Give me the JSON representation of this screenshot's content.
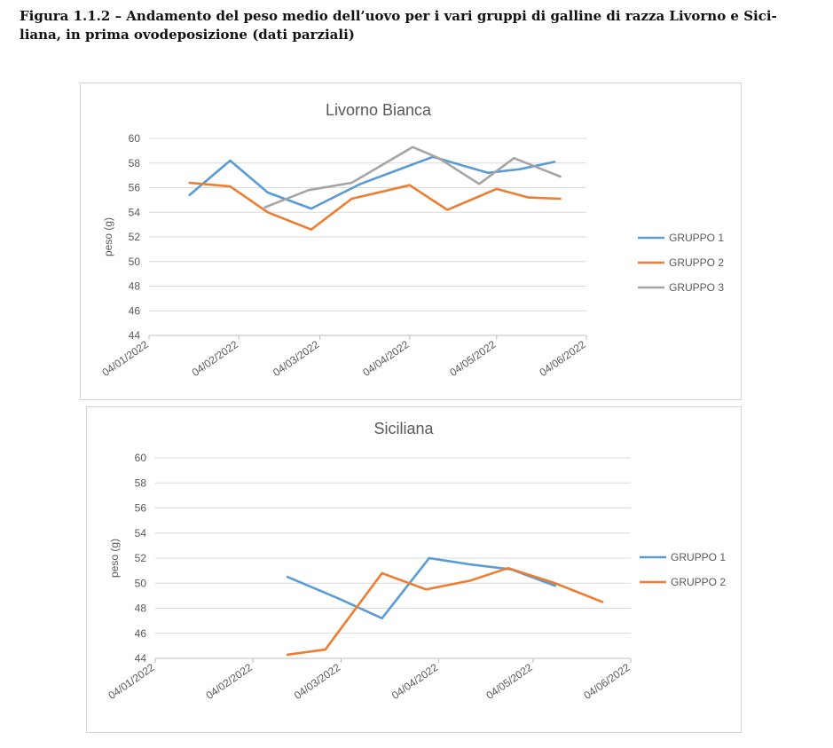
{
  "caption": "Figura 1.1.2 – Andamento del peso medio dell’uovo per i vari gruppi di galline di razza Livorno e Sici-liana, in prima ovodeposizione (dati parziali)",
  "colors": {
    "gruppo1": "#5b9bd5",
    "gruppo2": "#ed7d31",
    "gruppo3": "#a5a5a5",
    "grid": "#d9d9d9",
    "text": "#595959"
  },
  "chart_data": [
    {
      "type": "line",
      "title": "Livorno Bianca",
      "xlabel": "",
      "ylabel": "peso (g)",
      "ylim": [
        44,
        60
      ],
      "yticks": [
        44,
        46,
        48,
        50,
        52,
        54,
        56,
        58,
        60
      ],
      "xticks": [
        "04/01/2022",
        "04/02/2022",
        "04/03/2022",
        "04/04/2022",
        "04/05/2022",
        "04/06/2022"
      ],
      "xlim": [
        "2022-01-04",
        "2022-06-04"
      ],
      "grid": true,
      "legend": "right",
      "series": [
        {
          "name": "GRUPPO 1",
          "color": "#5b9bd5",
          "points": [
            [
              "2022-01-18",
              55.4
            ],
            [
              "2022-02-01",
              58.2
            ],
            [
              "2022-02-14",
              55.6
            ],
            [
              "2022-03-01",
              54.3
            ],
            [
              "2022-03-18",
              56.3
            ],
            [
              "2022-04-04",
              57.8
            ],
            [
              "2022-04-12",
              58.5
            ],
            [
              "2022-05-01",
              57.2
            ],
            [
              "2022-05-12",
              57.5
            ],
            [
              "2022-05-24",
              58.1
            ]
          ]
        },
        {
          "name": "GRUPPO 2",
          "color": "#ed7d31",
          "points": [
            [
              "2022-01-18",
              56.4
            ],
            [
              "2022-02-01",
              56.1
            ],
            [
              "2022-02-14",
              54.0
            ],
            [
              "2022-03-01",
              52.6
            ],
            [
              "2022-03-15",
              55.1
            ],
            [
              "2022-04-04",
              56.2
            ],
            [
              "2022-04-17",
              54.2
            ],
            [
              "2022-05-04",
              55.9
            ],
            [
              "2022-05-15",
              55.2
            ],
            [
              "2022-05-26",
              55.1
            ]
          ]
        },
        {
          "name": "GRUPPO 3",
          "color": "#a5a5a5",
          "points": [
            [
              "2022-02-13",
              54.4
            ],
            [
              "2022-02-28",
              55.8
            ],
            [
              "2022-03-15",
              56.4
            ],
            [
              "2022-04-05",
              59.3
            ],
            [
              "2022-04-14",
              58.4
            ],
            [
              "2022-04-28",
              56.3
            ],
            [
              "2022-05-10",
              58.4
            ],
            [
              "2022-05-26",
              56.9
            ]
          ]
        }
      ]
    },
    {
      "type": "line",
      "title": "Siciliana",
      "xlabel": "",
      "ylabel": "peso (g)",
      "ylim": [
        44,
        60
      ],
      "yticks": [
        44,
        46,
        48,
        50,
        52,
        54,
        56,
        58,
        60
      ],
      "xticks": [
        "04/01/2022",
        "04/02/2022",
        "04/03/2022",
        "04/04/2022",
        "04/05/2022",
        "04/06/2022"
      ],
      "xlim": [
        "2022-01-04",
        "2022-06-04"
      ],
      "grid": true,
      "legend": "right",
      "series": [
        {
          "name": "GRUPPO 1",
          "color": "#5b9bd5",
          "points": [
            [
              "2022-02-15",
              50.5
            ],
            [
              "2022-03-03",
              48.8
            ],
            [
              "2022-03-17",
              47.2
            ],
            [
              "2022-04-01",
              52.0
            ],
            [
              "2022-04-14",
              51.5
            ],
            [
              "2022-04-27",
              51.1
            ],
            [
              "2022-05-11",
              49.8
            ]
          ]
        },
        {
          "name": "GRUPPO 2",
          "color": "#ed7d31",
          "points": [
            [
              "2022-02-15",
              44.3
            ],
            [
              "2022-02-27",
              44.7
            ],
            [
              "2022-03-17",
              50.8
            ],
            [
              "2022-03-31",
              49.5
            ],
            [
              "2022-04-14",
              50.2
            ],
            [
              "2022-04-26",
              51.2
            ],
            [
              "2022-05-11",
              50.0
            ],
            [
              "2022-05-26",
              48.5
            ]
          ]
        }
      ]
    }
  ]
}
